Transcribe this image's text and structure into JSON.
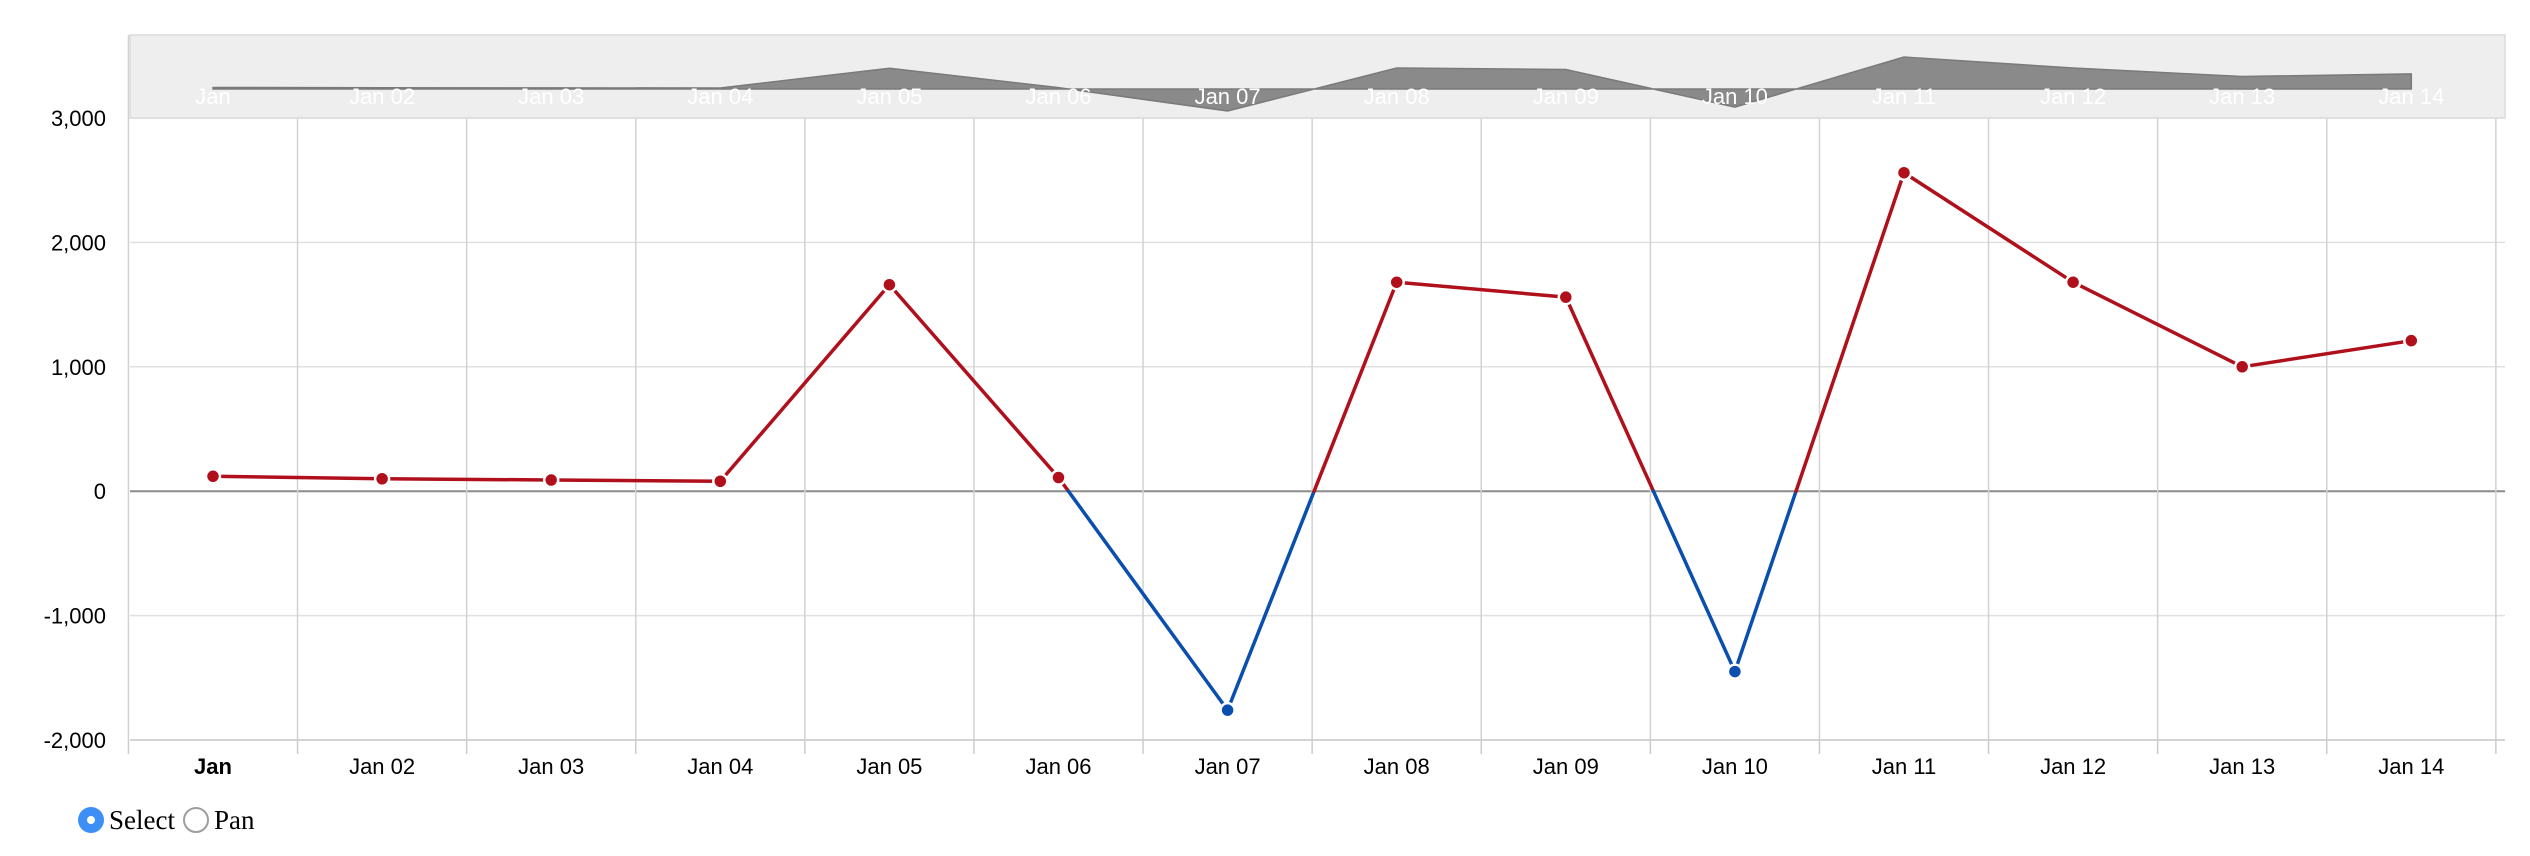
{
  "chart_data": {
    "type": "line",
    "x": [
      "Jan",
      "Jan 02",
      "Jan 03",
      "Jan 04",
      "Jan 05",
      "Jan 06",
      "Jan 07",
      "Jan 08",
      "Jan 09",
      "Jan 10",
      "Jan 11",
      "Jan 12",
      "Jan 13",
      "Jan 14"
    ],
    "values": [
      120,
      100,
      90,
      80,
      1660,
      110,
      -1760,
      1680,
      1560,
      -1450,
      2560,
      1680,
      1000,
      1210
    ],
    "yticks": [
      3000,
      2000,
      1000,
      0,
      -1000,
      -2000
    ],
    "ytick_labels": [
      "3,000",
      "2,000",
      "1,000",
      "0",
      "-1,000",
      "-2,000"
    ],
    "ylim": [
      -2000,
      3000
    ],
    "bold_x_label": "Jan",
    "positive_color": "#b0101c",
    "negative_color": "#0b4fae",
    "grid": true,
    "navigator": {
      "visible": true,
      "area_color": "#8a8a8a",
      "background": "#eeeeee"
    }
  },
  "controls": {
    "select_label": "Select",
    "pan_label": "Pan",
    "selected": "select"
  }
}
